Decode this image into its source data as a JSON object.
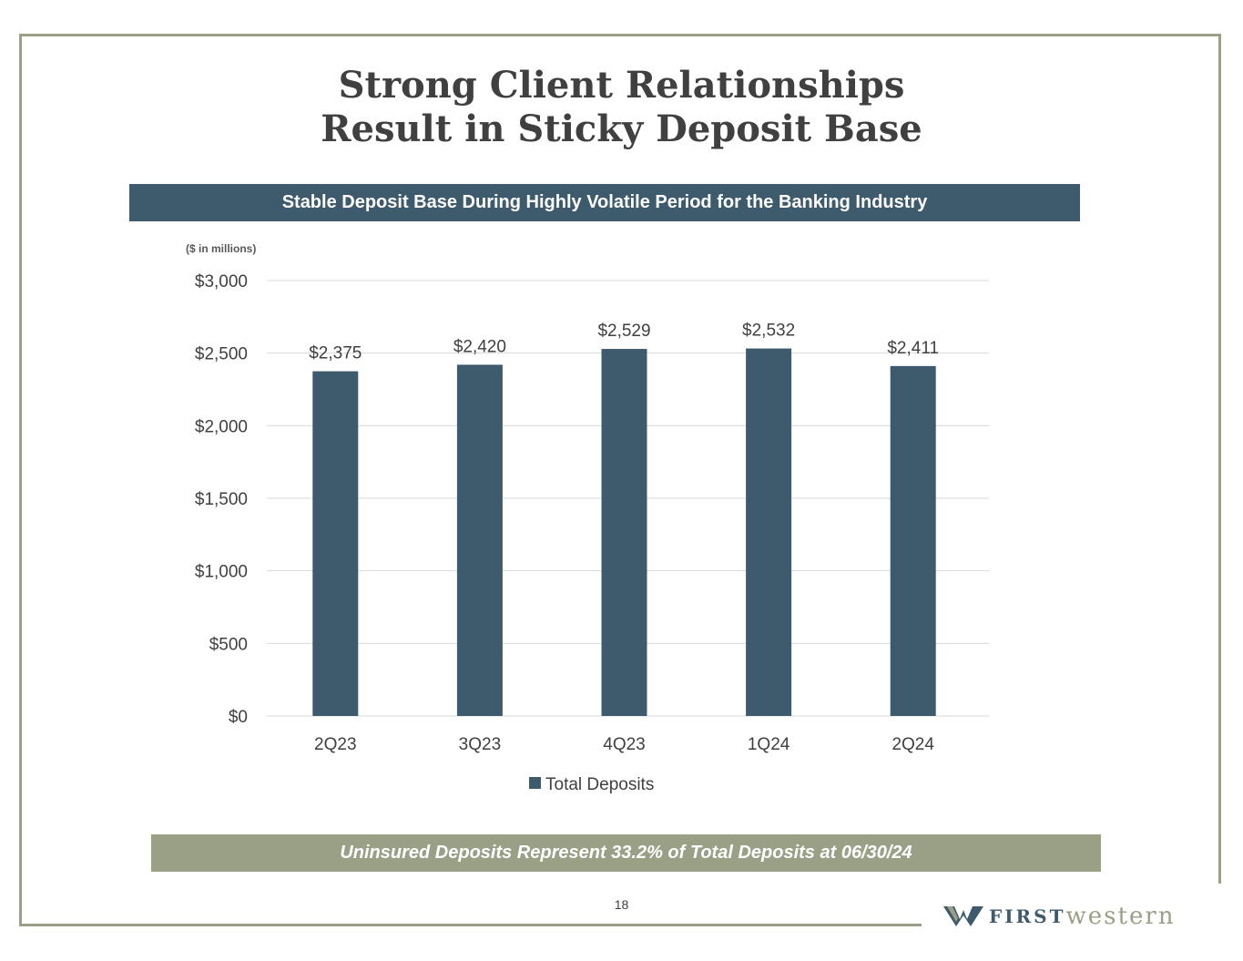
{
  "title_line1": "Strong Client Relationships",
  "title_line2": "Result in Sticky Deposit Base",
  "banner": "Stable Deposit Base During Highly Volatile Period for the Banking Industry",
  "footer_banner": "Uninsured Deposits Represent 33.2% of Total Deposits at 06/30/24",
  "page_number": "18",
  "logo": {
    "first": "FIRST",
    "western": "western"
  },
  "colors": {
    "bar": "#3e5b6e",
    "accent": "#9aa086",
    "text": "#404040",
    "grid": "#d9d9d9"
  },
  "chart_data": {
    "type": "bar",
    "units_label": "($ in millions)",
    "categories": [
      "2Q23",
      "3Q23",
      "4Q23",
      "1Q24",
      "2Q24"
    ],
    "series": [
      {
        "name": "Total Deposits",
        "values": [
          2375,
          2420,
          2529,
          2532,
          2411
        ]
      }
    ],
    "value_labels": [
      "$2,375",
      "$2,420",
      "$2,529",
      "$2,532",
      "$2,411"
    ],
    "ylim": [
      0,
      3000
    ],
    "yticks": [
      0,
      500,
      1000,
      1500,
      2000,
      2500,
      3000
    ],
    "ytick_labels": [
      "$0",
      "$500",
      "$1,000",
      "$1,500",
      "$2,000",
      "$2,500",
      "$3,000"
    ],
    "grid": true,
    "legend": "bottom"
  }
}
